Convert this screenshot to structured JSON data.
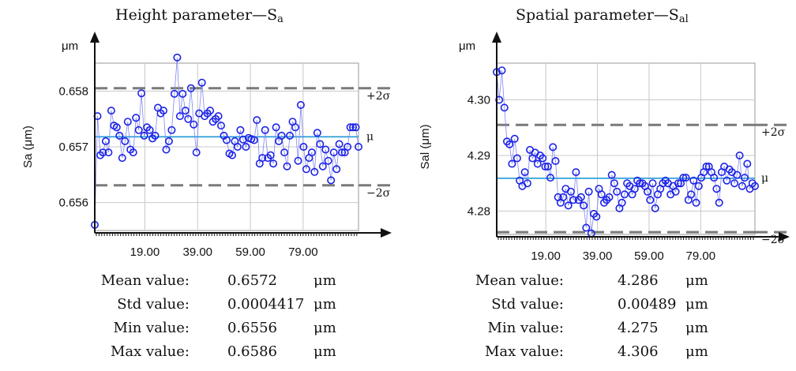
{
  "colors": {
    "points": "#1c22e6",
    "line": "#7f86f0",
    "mean_line": "#1f9ad8",
    "sigma_line": "#7a7a7a",
    "grid": "#c8c8c8",
    "axis": "#111111"
  },
  "panels": [
    {
      "title_main": "Height parameter—S",
      "title_sub": "a",
      "stats": [
        {
          "label": "Mean value:",
          "value": "0.6572",
          "unit": "μm"
        },
        {
          "label": "Std value:",
          "value": "0.0004417",
          "unit": "μm"
        },
        {
          "label": "Min value:",
          "value": "0.6556",
          "unit": "μm"
        },
        {
          "label": "Max value:",
          "value": "0.6586",
          "unit": "μm"
        }
      ]
    },
    {
      "title_main": "Spatial parameter—S",
      "title_sub": "al",
      "stats": [
        {
          "label": "Mean value:",
          "value": "4.286",
          "unit": "μm"
        },
        {
          "label": "Std value:",
          "value": "0.00489",
          "unit": "μm"
        },
        {
          "label": "Min value:",
          "value": "4.275",
          "unit": "μm"
        },
        {
          "label": "Max value:",
          "value": "4.306",
          "unit": "μm"
        }
      ]
    }
  ],
  "chart_data": [
    {
      "type": "line",
      "ylabel": "Sa (μm)",
      "yunit": "μm",
      "xlim": [
        0,
        100
      ],
      "ylim": [
        0.6555,
        0.6585
      ],
      "x_ticks": [
        "19.00",
        "39.00",
        "59.00",
        "79.00"
      ],
      "x_tick_values": [
        19,
        39,
        59,
        79
      ],
      "y_ticks": [
        "0.656",
        "0.657",
        "0.658"
      ],
      "y_tick_values": [
        0.656,
        0.657,
        0.658
      ],
      "grid": true,
      "reference_lines": [
        {
          "label": "+2σ",
          "value": 0.65805,
          "style": "dashed"
        },
        {
          "label": "μ",
          "value": 0.65718,
          "style": "solid"
        },
        {
          "label": "−2σ",
          "value": 0.65631,
          "style": "dashed"
        }
      ],
      "series": [
        {
          "values": [
            0.6556,
            0.65755,
            0.65685,
            0.6569,
            0.6571,
            0.6569,
            0.65765,
            0.65738,
            0.65735,
            0.6572,
            0.6568,
            0.6571,
            0.65745,
            0.65695,
            0.6569,
            0.65752,
            0.6573,
            0.65796,
            0.6572,
            0.65735,
            0.6573,
            0.65715,
            0.6572,
            0.6577,
            0.6576,
            0.65765,
            0.65695,
            0.6571,
            0.6573,
            0.65795,
            0.6586,
            0.65755,
            0.65795,
            0.65765,
            0.6575,
            0.65805,
            0.6574,
            0.6569,
            0.6576,
            0.65815,
            0.65755,
            0.6576,
            0.65765,
            0.65745,
            0.6575,
            0.65755,
            0.65738,
            0.6572,
            0.65712,
            0.65688,
            0.65685,
            0.6571,
            0.657,
            0.6573,
            0.65713,
            0.657,
            0.65716,
            0.65714,
            0.65712,
            0.65748,
            0.6567,
            0.6568,
            0.6573,
            0.6568,
            0.65685,
            0.6567,
            0.65735,
            0.6571,
            0.6572,
            0.6569,
            0.65665,
            0.6572,
            0.65745,
            0.65735,
            0.65675,
            0.65775,
            0.657,
            0.6566,
            0.6568,
            0.6569,
            0.65655,
            0.65725,
            0.65705,
            0.65665,
            0.65695,
            0.65675,
            0.6564,
            0.6569,
            0.6566,
            0.65705,
            0.6569,
            0.6569,
            0.657,
            0.65735,
            0.65735,
            0.65735,
            0.657
          ]
        }
      ]
    },
    {
      "type": "line",
      "ylabel": "Sal (μm)",
      "yunit": "μm",
      "xlim": [
        0,
        100
      ],
      "ylim": [
        4.2758,
        4.3066
      ],
      "x_ticks": [
        "19.00",
        "39.00",
        "59.00",
        "79.00"
      ],
      "x_tick_values": [
        19,
        39,
        59,
        79
      ],
      "y_ticks": [
        "4.28",
        "4.29",
        "4.30"
      ],
      "y_tick_values": [
        4.28,
        4.29,
        4.3
      ],
      "grid": true,
      "reference_lines": [
        {
          "label": "+2σ",
          "value": 4.2955,
          "style": "dashed"
        },
        {
          "label": "μ",
          "value": 4.2859,
          "style": "solid"
        },
        {
          "label": "−2σ",
          "value": 4.2762,
          "style": "dashed"
        }
      ],
      "series": [
        {
          "values": [
            4.305,
            4.3,
            4.3053,
            4.2986,
            4.2925,
            4.292,
            4.2885,
            4.293,
            4.2895,
            4.2855,
            4.2845,
            4.287,
            4.285,
            4.291,
            4.2895,
            4.2905,
            4.2885,
            4.29,
            4.2895,
            4.288,
            4.288,
            4.286,
            4.2915,
            4.289,
            4.2825,
            4.2815,
            4.2825,
            4.284,
            4.281,
            4.2835,
            4.282,
            4.287,
            4.282,
            4.2825,
            4.281,
            4.277,
            4.2835,
            4.276,
            4.2795,
            4.279,
            4.284,
            4.283,
            4.2815,
            4.282,
            4.2825,
            4.2865,
            4.285,
            4.2835,
            4.2805,
            4.2815,
            4.283,
            4.285,
            4.2845,
            4.283,
            4.284,
            4.2855,
            4.285,
            4.285,
            4.2845,
            4.2835,
            4.282,
            4.285,
            4.2805,
            4.283,
            4.284,
            4.285,
            4.2855,
            4.285,
            4.283,
            4.2845,
            4.2835,
            4.285,
            4.285,
            4.286,
            4.286,
            4.282,
            4.283,
            4.2855,
            4.2815,
            4.2845,
            4.286,
            4.287,
            4.288,
            4.288,
            4.287,
            4.286,
            4.284,
            4.2815,
            4.287,
            4.288,
            4.2855,
            4.2875,
            4.287,
            4.285,
            4.2865,
            4.29,
            4.2845,
            4.286,
            4.2885,
            4.284,
            4.285,
            4.2845
          ]
        }
      ]
    }
  ]
}
